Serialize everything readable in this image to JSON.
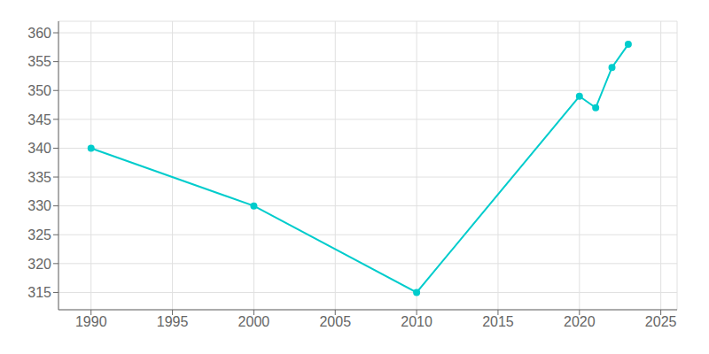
{
  "chart_data": {
    "type": "line",
    "x": [
      1990,
      2000,
      2010,
      2020,
      2021,
      2022,
      2023
    ],
    "values": [
      340,
      330,
      315,
      349,
      347,
      354,
      358
    ],
    "color": "#00CCCC",
    "marker": "circle",
    "xlim": [
      1988,
      2026
    ],
    "ylim": [
      312,
      362
    ],
    "xticks": [
      1990,
      1995,
      2000,
      2005,
      2010,
      2015,
      2020,
      2025
    ],
    "yticks": [
      315,
      320,
      325,
      330,
      335,
      340,
      345,
      350,
      355,
      360
    ],
    "grid": true
  }
}
